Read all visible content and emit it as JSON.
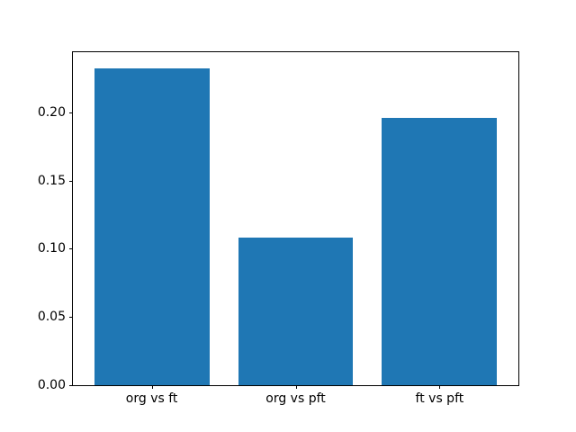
{
  "chart_data": {
    "type": "bar",
    "categories": [
      "org vs ft",
      "org vs pft",
      "ft vs pft"
    ],
    "values": [
      0.232,
      0.108,
      0.196
    ],
    "title": "",
    "xlabel": "",
    "ylabel": "",
    "ylim": [
      0,
      0.244
    ],
    "yticks": [
      0.0,
      0.05,
      0.1,
      0.15,
      0.2
    ],
    "ytick_labels": [
      "0.00",
      "0.05",
      "0.10",
      "0.15",
      "0.20"
    ],
    "grid": false,
    "legend": null,
    "bar_color": "#1f77b4",
    "bar_width_fraction": 0.8,
    "x_limits_units": [
      -0.548,
      2.548
    ]
  }
}
